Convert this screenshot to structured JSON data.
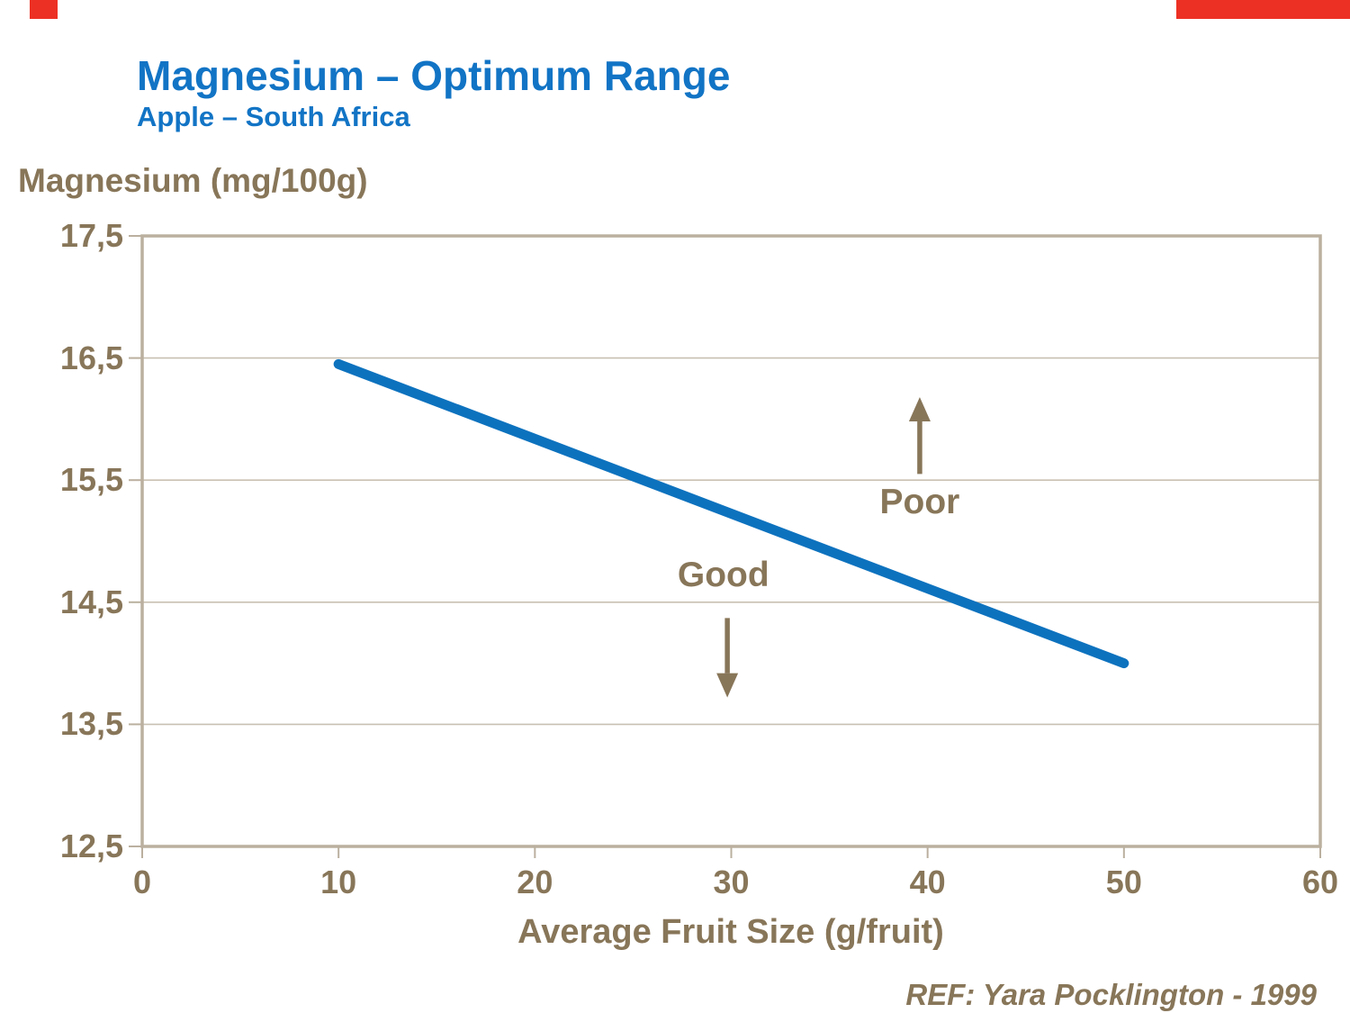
{
  "page": {
    "accent_red": "#ED3024",
    "title_blue": "#1274C5",
    "text_brown": "#887659",
    "background": "#FFFFFF"
  },
  "header": {
    "title": "Magnesium – Optimum Range",
    "subtitle": "Apple – South Africa"
  },
  "footer": {
    "ref": "REF: Yara Pocklington - 1999"
  },
  "chart_data": {
    "type": "line",
    "y_axis_title": "Magnesium (mg/100g)",
    "xlabel": "Average Fruit Size (g/fruit)",
    "xlim": [
      0,
      60
    ],
    "ylim": [
      12.5,
      17.5
    ],
    "grid": "horizontal",
    "legend": "none",
    "border_color": "#BBB09F",
    "grid_color": "#C9C0B2",
    "x_ticks": [
      {
        "label": "0",
        "value": 0
      },
      {
        "label": "10",
        "value": 10
      },
      {
        "label": "20",
        "value": 20
      },
      {
        "label": "30",
        "value": 30
      },
      {
        "label": "40",
        "value": 40
      },
      {
        "label": "50",
        "value": 50
      },
      {
        "label": "60",
        "value": 60
      }
    ],
    "y_ticks": [
      {
        "label": "17,5",
        "value": 17.5
      },
      {
        "label": "16,5",
        "value": 16.5
      },
      {
        "label": "15,5",
        "value": 15.5
      },
      {
        "label": "14,5",
        "value": 14.5
      },
      {
        "label": "13,5",
        "value": 13.5
      },
      {
        "label": "12,5",
        "value": 12.5
      }
    ],
    "series": [
      {
        "name": "optimum-magnesium-line",
        "color": "#0D72BE",
        "x": [
          10,
          50
        ],
        "y": [
          16.45,
          14.0
        ]
      }
    ],
    "annotations": [
      {
        "label": "Poor",
        "text_x": 39.6,
        "text_y": 15.32,
        "arrow": {
          "x": 39.6,
          "from_y": 15.55,
          "to_y": 16.18,
          "direction": "up"
        }
      },
      {
        "label": "Good",
        "text_x": 29.6,
        "text_y": 14.72,
        "arrow": {
          "x": 29.8,
          "from_y": 14.37,
          "to_y": 13.72,
          "direction": "down"
        }
      }
    ]
  }
}
